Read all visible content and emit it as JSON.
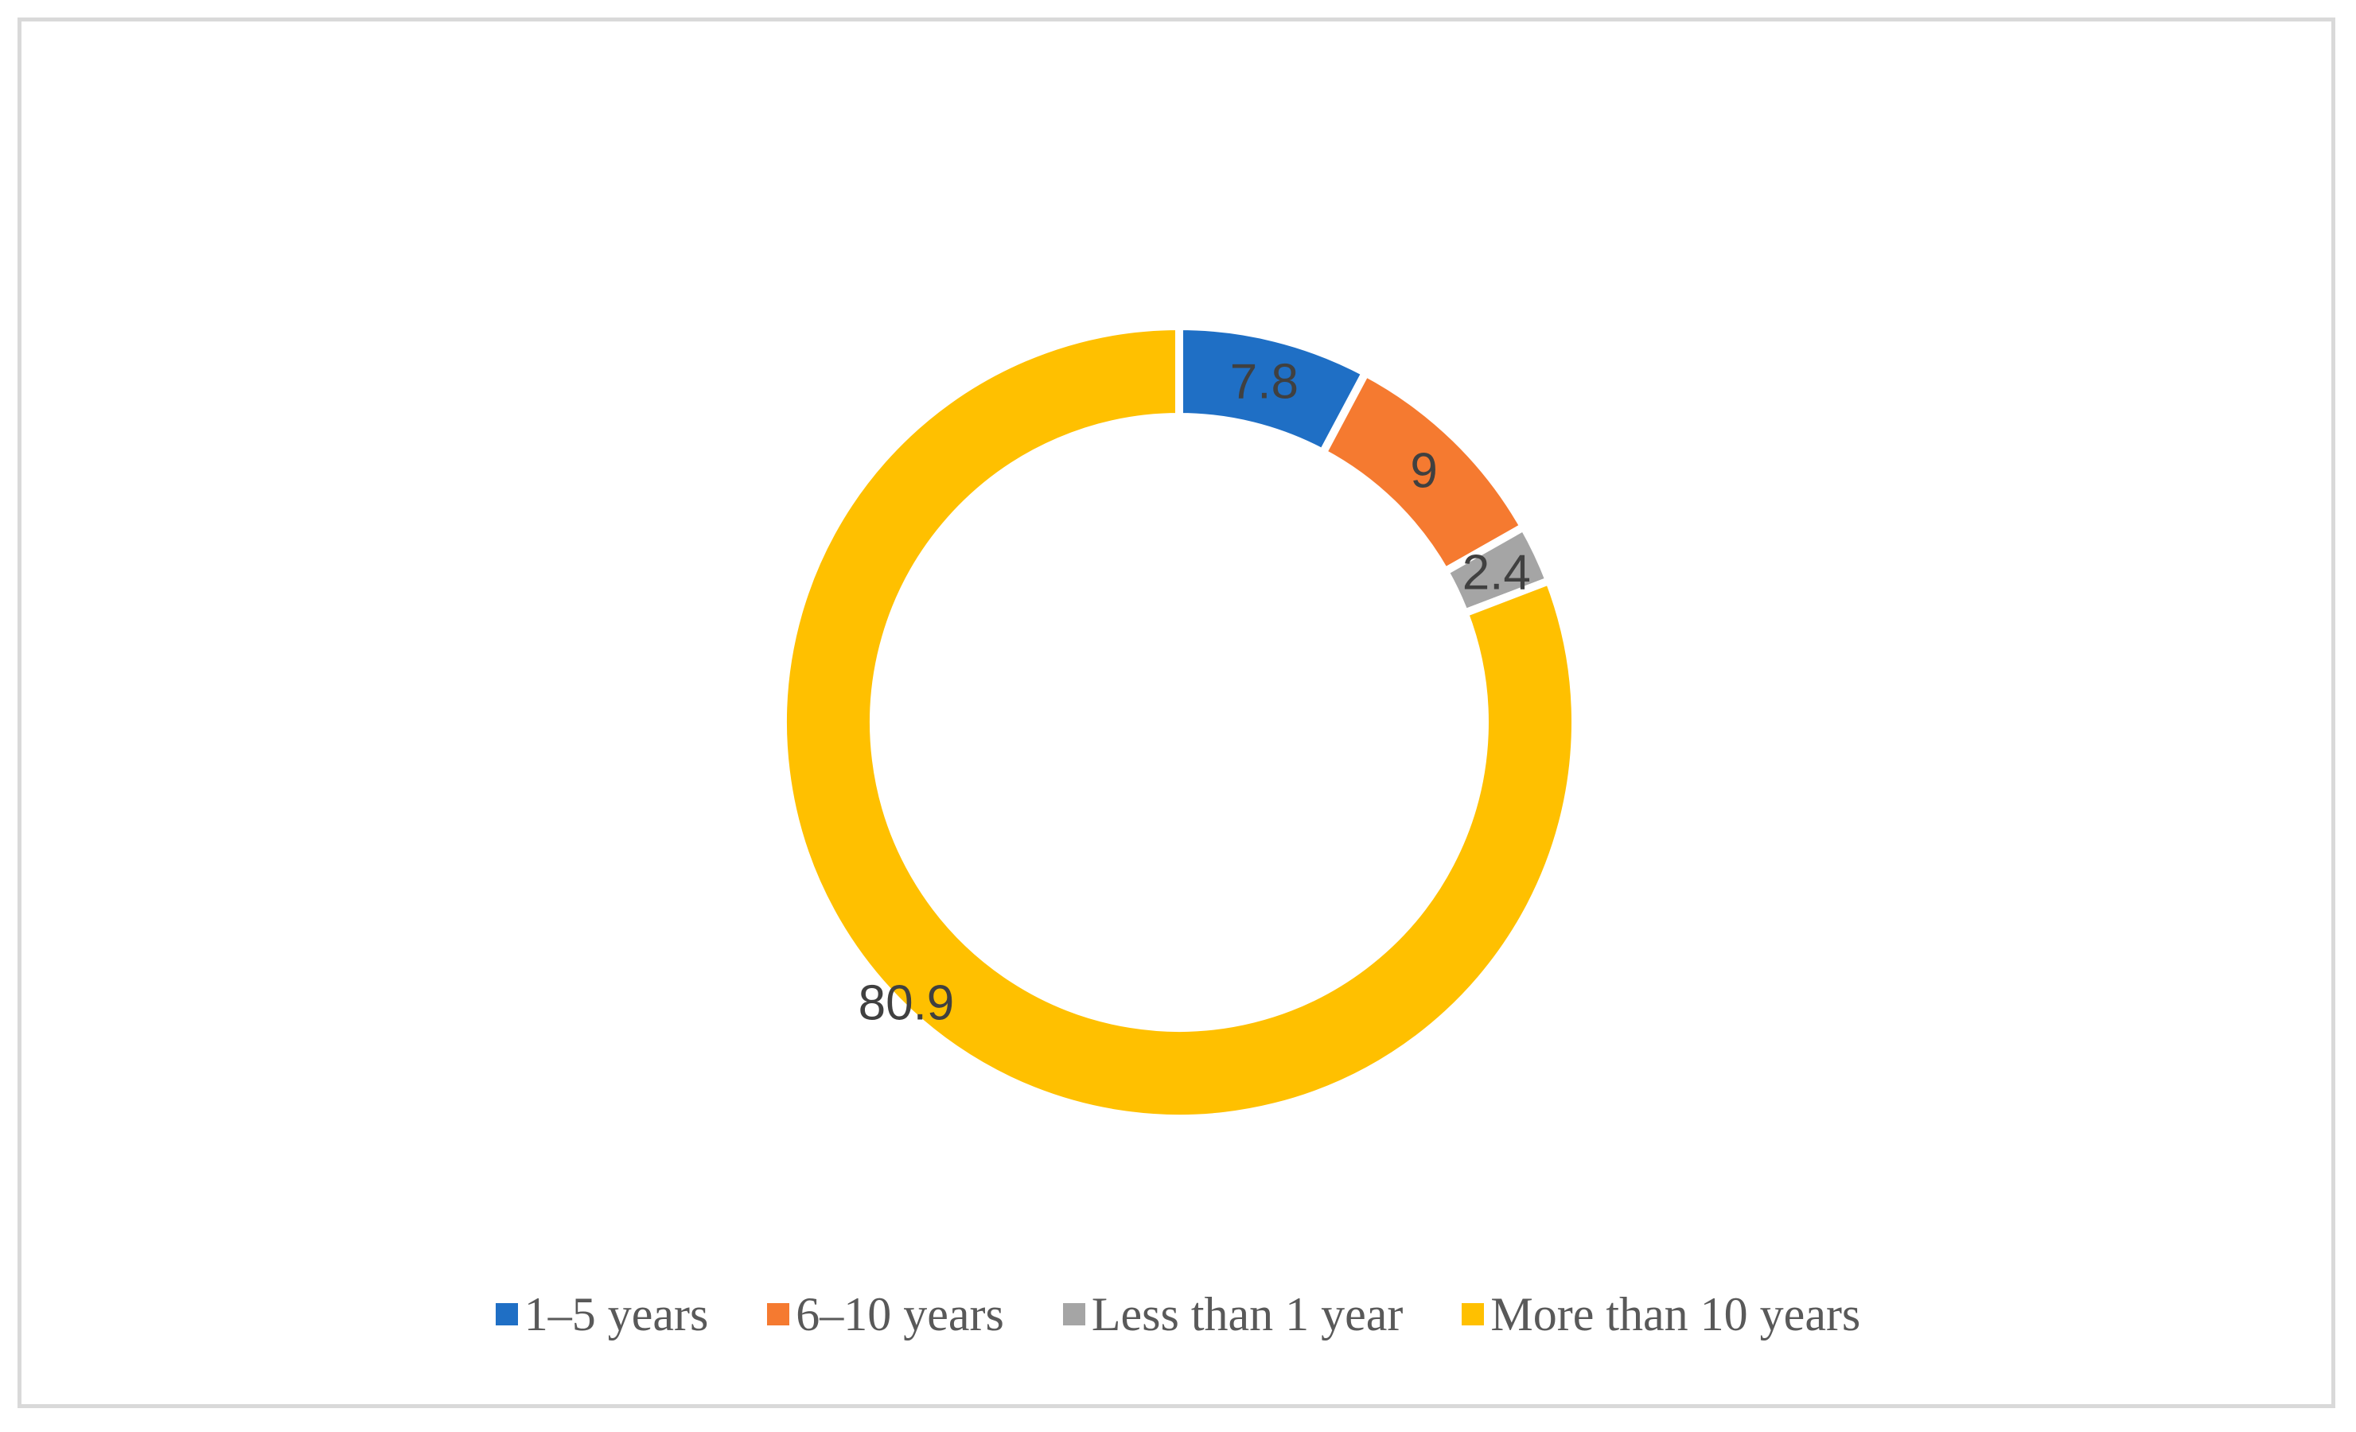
{
  "chart_data": {
    "type": "pie",
    "subtype": "donut",
    "title": "",
    "series": [
      {
        "name": "",
        "slices": [
          {
            "label": "1–5 years",
            "value": 7.8,
            "display": "7.8",
            "color": "#1f6fc5"
          },
          {
            "label": "6–10 years",
            "value": 9,
            "display": "9",
            "color": "#f57a30"
          },
          {
            "label": "Less than 1 year",
            "value": 2.4,
            "display": "2.4",
            "color": "#a5a5a5"
          },
          {
            "label": "More than 10 years",
            "value": 80.9,
            "display": "80.9",
            "color": "#ffc000"
          }
        ]
      }
    ],
    "legend": {
      "position": "bottom",
      "items": [
        "1–5 years",
        "6–10 years",
        "Less than 1 year",
        "More than 10 years"
      ]
    },
    "grid": false,
    "colors": {
      "border": "#d9d9d9",
      "label_text": "#404040",
      "legend_text": "#595959"
    }
  }
}
